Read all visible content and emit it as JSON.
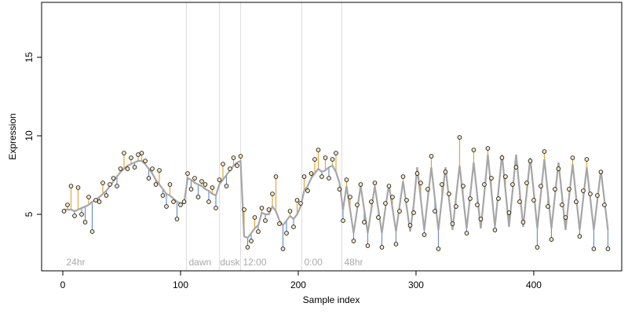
{
  "chart_data": {
    "type": "scatter",
    "xlabel": "Sample index",
    "ylabel": "Expression",
    "xlim": [
      -18,
      474.7
    ],
    "ylim": [
      1.4,
      18.5
    ],
    "xticks": [
      0,
      100,
      200,
      300,
      400
    ],
    "yticks": [
      5,
      10,
      15
    ],
    "above_color": "#e8a33c",
    "below_color": "#6a8fd4",
    "point_fill": "#f3e3c0",
    "vline_color": "#dddddd",
    "vlines": [
      105,
      133,
      151,
      203,
      237
    ],
    "annotations": [
      {
        "x": 3,
        "text": "24hr"
      },
      {
        "x": 107,
        "text": "dawn"
      },
      {
        "x": 133.5,
        "text": "dusk"
      },
      {
        "x": 153,
        "text": "12:00"
      },
      {
        "x": 205,
        "text": "0:00"
      },
      {
        "x": 239,
        "text": "48hr"
      }
    ],
    "x": [
      1,
      4,
      7,
      10,
      13,
      16,
      19,
      22,
      25,
      28,
      31,
      34,
      37,
      40,
      43,
      46,
      49,
      52,
      55,
      58,
      61,
      64,
      67,
      70,
      73,
      76,
      79,
      82,
      85,
      88,
      91,
      94,
      97,
      100,
      103,
      106,
      109,
      112,
      115,
      118,
      121,
      124,
      127,
      130,
      133,
      136,
      139,
      142,
      145,
      148,
      151,
      154,
      157,
      160,
      163,
      166,
      169,
      172,
      175,
      178,
      181,
      184,
      187,
      190,
      193,
      196,
      199,
      202,
      205,
      208,
      211,
      214,
      217,
      220,
      223,
      226,
      229,
      232,
      235,
      238,
      241,
      244,
      247,
      250,
      253,
      256,
      259,
      262,
      265,
      268,
      271,
      274,
      277,
      280,
      283,
      286,
      289,
      292,
      295,
      298,
      301,
      304,
      307,
      310,
      313,
      316,
      319,
      322,
      325,
      328,
      331,
      334,
      337,
      340,
      343,
      346,
      349,
      352,
      355,
      358,
      361,
      364,
      367,
      370,
      373,
      376,
      379,
      382,
      385,
      388,
      391,
      394,
      397,
      400,
      403,
      406,
      409,
      412,
      415,
      418,
      421,
      424,
      427,
      430,
      433,
      436,
      439,
      442,
      445,
      448,
      451,
      454,
      457,
      460,
      463
    ],
    "series": [
      {
        "color": "#000000",
        "values": [
          5.2,
          5.6,
          6.8,
          4.9,
          6.7,
          5.0,
          4.5,
          6.1,
          3.9,
          5.9,
          5.8,
          7.0,
          6.2,
          6.9,
          7.3,
          6.8,
          7.9,
          8.9,
          7.9,
          8.6,
          8.0,
          8.8,
          8.9,
          8.4,
          7.3,
          7.9,
          6.9,
          7.8,
          6.2,
          5.5,
          6.9,
          5.8,
          4.7,
          5.6,
          5.8,
          7.6,
          6.6,
          7.3,
          6.1,
          7.1,
          6.9,
          5.8,
          6.7,
          5.4,
          7.2,
          8.2,
          6.8,
          7.9,
          8.6,
          8.1,
          8.7,
          5.3,
          2.9,
          3.3,
          4.8,
          3.9,
          5.4,
          4.6,
          5.3,
          6.3,
          7.4,
          4.4,
          2.8,
          3.8,
          5.2,
          4.2,
          5.9,
          5.7,
          7.4,
          6.5,
          7.6,
          8.5,
          9.1,
          7.4,
          8.6,
          7.3,
          8.5,
          8.9,
          6.6,
          4.6,
          7.2,
          6.1,
          3.3,
          5.6,
          6.9,
          4.5,
          3.0,
          5.8,
          7.0,
          4.8,
          2.9,
          5.7,
          6.8,
          6.1,
          3.1,
          5.2,
          7.4,
          5.9,
          4.3,
          5.1,
          7.6,
          7.0,
          3.7,
          6.6,
          8.7,
          5.2,
          2.8,
          6.9,
          7.7,
          6.3,
          4.4,
          5.5,
          9.9,
          6.8,
          3.8,
          6.0,
          9.1,
          5.6,
          4.7,
          6.9,
          9.2,
          7.3,
          4.0,
          6.0,
          8.6,
          7.4,
          5.1,
          6.9,
          8.0,
          5.8,
          4.5,
          7.0,
          8.4,
          5.9,
          2.9,
          6.8,
          9.0,
          5.5,
          3.4,
          6.6,
          7.9,
          5.6,
          4.8,
          6.6,
          8.6,
          5.8,
          3.6,
          6.5,
          8.5,
          6.3,
          2.8,
          6.2,
          7.7,
          5.6,
          2.8
        ]
      },
      {
        "color": "#a6a6a6",
        "values": [
          5.3,
          5.3,
          5.3,
          5.2,
          5.3,
          5.4,
          5.5,
          5.6,
          5.8,
          5.9,
          6.1,
          6.3,
          6.5,
          6.8,
          7.1,
          7.4,
          7.7,
          7.9,
          8.1,
          8.2,
          8.3,
          8.4,
          8.4,
          8.2,
          7.9,
          7.6,
          7.2,
          6.9,
          6.6,
          6.3,
          6.2,
          6.0,
          5.8,
          5.7,
          5.7,
          7.3,
          7.2,
          7.0,
          6.9,
          6.8,
          6.6,
          6.5,
          6.3,
          6.2,
          6.9,
          7.2,
          7.5,
          7.8,
          8.1,
          8.3,
          8.4,
          3.6,
          3.5,
          3.8,
          4.1,
          4.3,
          5.1,
          5.0,
          5.0,
          5.5,
          5.2,
          4.6,
          4.3,
          4.6,
          4.9,
          4.7,
          5.0,
          5.5,
          6.5,
          6.8,
          7.3,
          7.6,
          7.9,
          7.7,
          7.8,
          8.0,
          8.1,
          7.7,
          7.0,
          5.3,
          6.8,
          5.3,
          3.8,
          5.3,
          6.8,
          5.3,
          3.8,
          5.3,
          6.8,
          5.3,
          3.8,
          5.4,
          6.9,
          5.4,
          3.9,
          5.5,
          7.1,
          5.5,
          3.9,
          5.6,
          8.0,
          6.0,
          4.0,
          6.0,
          8.0,
          6.0,
          4.0,
          6.0,
          8.0,
          6.0,
          4.0,
          6.1,
          8.1,
          6.1,
          4.1,
          6.2,
          8.3,
          6.2,
          4.1,
          6.3,
          8.8,
          6.5,
          4.2,
          6.5,
          8.8,
          6.5,
          4.2,
          6.5,
          8.8,
          6.5,
          4.2,
          6.4,
          8.6,
          6.4,
          4.1,
          6.3,
          8.5,
          6.3,
          4.1,
          6.2,
          8.3,
          6.2,
          4.0,
          6.1,
          8.2,
          6.1,
          4.0,
          6.0,
          8.0,
          6.0,
          4.0,
          5.9,
          7.8,
          5.9,
          4.0
        ]
      }
    ]
  }
}
